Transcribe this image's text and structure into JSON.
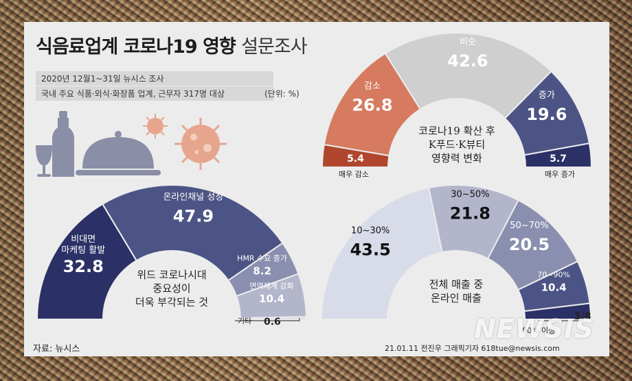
{
  "title": {
    "bold": "식음료업계 코로나19 영향",
    "light": "설문조사"
  },
  "meta": {
    "line1": "2020년 12월1~31일 뉴시스 조사",
    "line2": "국내 주요 식품·외식·화장품 업계, 근무자 317명 대상",
    "unit": "(단위: %)"
  },
  "source": "자료: 뉴시스",
  "credit": "21.01.11 전진우 그래픽기자 618tue@newsis.com",
  "watermark": "NEWSIS",
  "chart_data": [
    {
      "type": "pie",
      "center_text": [
        "코로나19 확산 후",
        "K푸드·K뷰티",
        "영향력 변화"
      ],
      "categories": [
        "매우 감소",
        "감소",
        "비슷",
        "증가",
        "매우 증가"
      ],
      "values": [
        5.4,
        26.8,
        42.6,
        19.6,
        5.7
      ],
      "colors": [
        "#b0462e",
        "#d67a60",
        "#cfcfcf",
        "#4c5485",
        "#2b3166"
      ]
    },
    {
      "type": "pie",
      "center_text": [
        "위드 코로나시대",
        "중요성이",
        "더욱 부각되는 것"
      ],
      "categories": [
        "비대면 마케팅 활발",
        "온라인채널 성장",
        "HMR 수요 증가",
        "면역체계 강화",
        "기타"
      ],
      "values": [
        32.8,
        47.9,
        8.2,
        10.4,
        0.6
      ],
      "colors": [
        "#2b3166",
        "#4c5485",
        "#8a8faf",
        "#b3b6cb",
        "#d8d9e2"
      ]
    },
    {
      "type": "pie",
      "center_text": [
        "전체 매출 중",
        "온라인 매출"
      ],
      "categories": [
        "10~30%",
        "30~50%",
        "50~70%",
        "70~90%",
        "90% 이상"
      ],
      "values": [
        43.5,
        21.8,
        20.5,
        10.4,
        3.8
      ],
      "colors": [
        "#d8dbe8",
        "#b3b6cb",
        "#8a8faf",
        "#4c5485",
        "#2b3166"
      ]
    }
  ]
}
